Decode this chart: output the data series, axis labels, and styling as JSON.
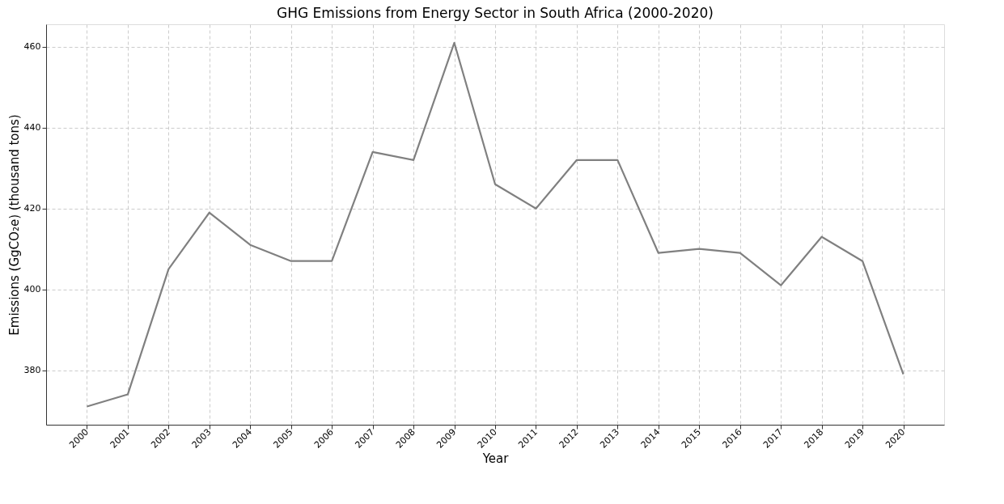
{
  "chart_data": {
    "type": "line",
    "title": "GHG Emissions from Energy Sector in South Africa (2000-2020)",
    "xlabel": "Year",
    "ylabel": "Emissions (GgCO₂e) (thousand tons)",
    "categories": [
      "2000",
      "2001",
      "2002",
      "2003",
      "2004",
      "2005",
      "2006",
      "2007",
      "2008",
      "2009",
      "2010",
      "2011",
      "2012",
      "2013",
      "2014",
      "2015",
      "2016",
      "2017",
      "2018",
      "2019",
      "2020"
    ],
    "series": [
      {
        "color": "#808080",
        "values": [
          371,
          374,
          405,
          419,
          411,
          407,
          407,
          434,
          432,
          461,
          426,
          420,
          432,
          432,
          409,
          410,
          409,
          401,
          413,
          407,
          379
        ]
      }
    ],
    "ylim": [
      366.5,
      465.6
    ],
    "yticks": [
      380,
      400,
      420,
      440,
      460
    ],
    "grid": true,
    "line_style": "solid",
    "marker": "none"
  }
}
